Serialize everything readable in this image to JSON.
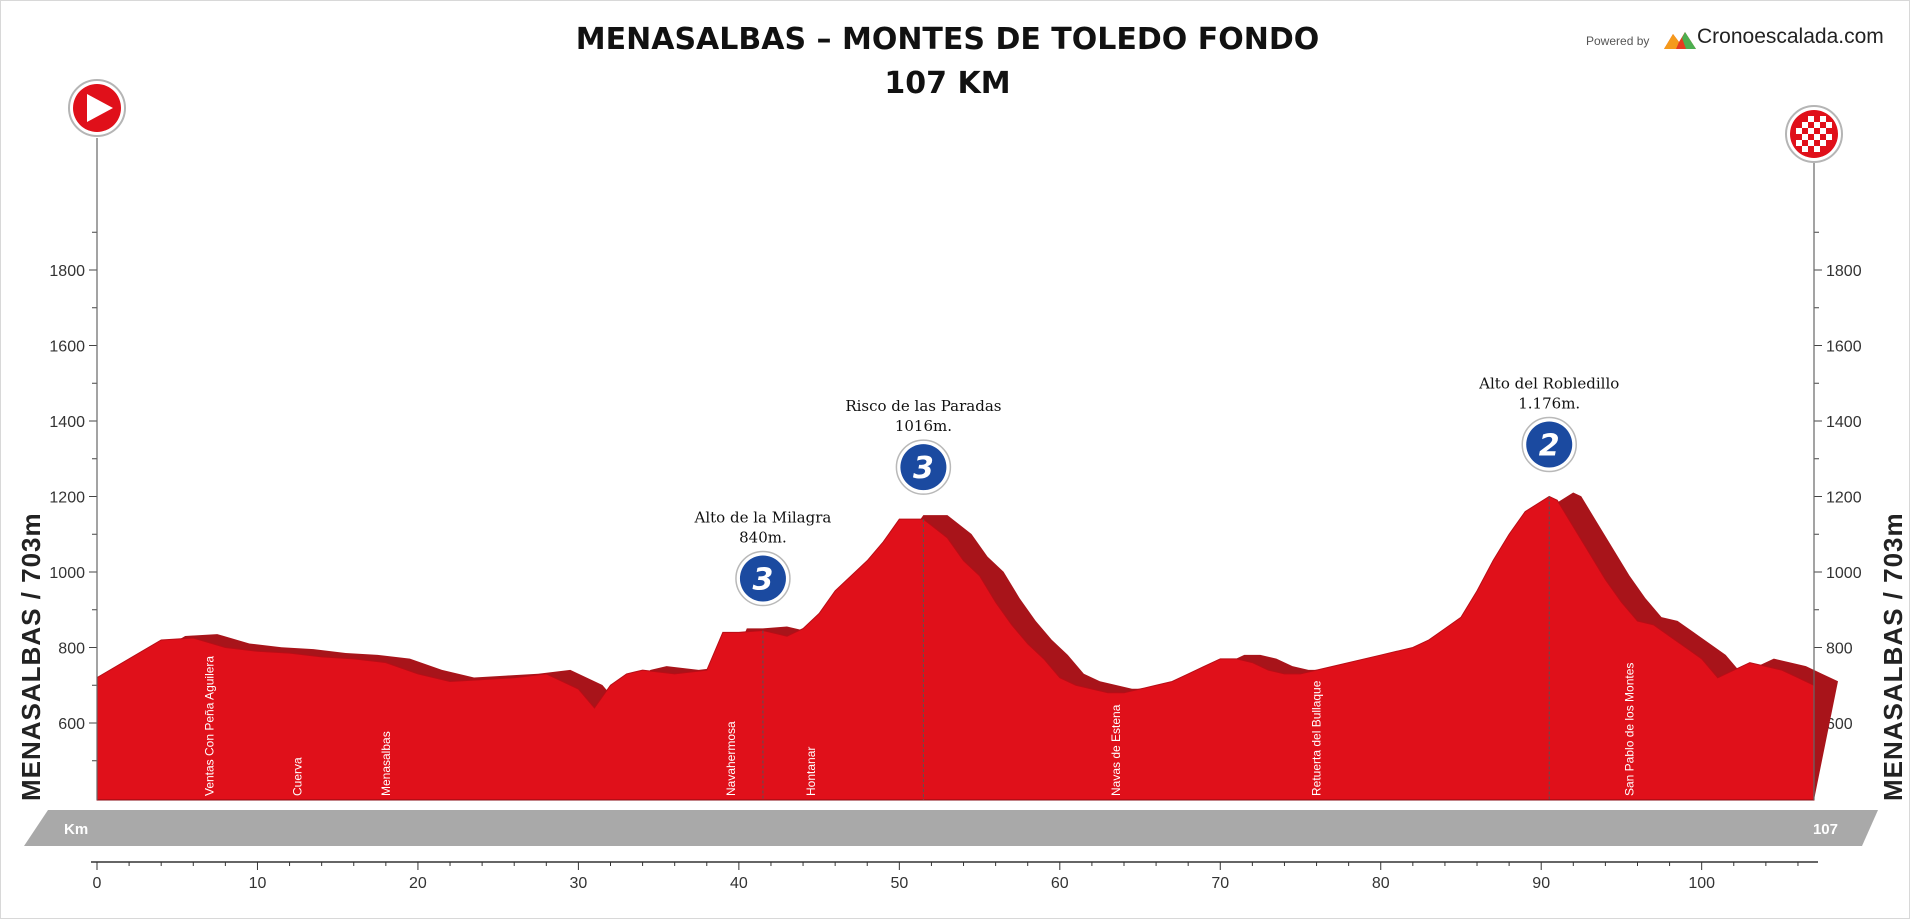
{
  "header": {
    "title": "MENASALBAS – MONTES DE TOLEDO FONDO",
    "subtitle": "107 KM",
    "powered_by": "Powered by",
    "brand": "Cronoescalada.com"
  },
  "side_label": "MENASALBAS / 703m",
  "km_bar": {
    "left": "Km",
    "right": "107"
  },
  "colors": {
    "profile": "#e0101a",
    "slope_shadow": "#a8141a",
    "km_bar": "#a9a9a9",
    "badge": "#1b4aa0"
  },
  "icons": {
    "start": "start-flag-icon",
    "finish": "checkered-finish-icon"
  },
  "chart_data": {
    "type": "area",
    "title": "MENASALBAS – MONTES DE TOLEDO FONDO",
    "subtitle": "107 KM",
    "xlabel": "",
    "ylabel": "",
    "xlim": [
      0,
      107
    ],
    "ylim": [
      400,
      2000
    ],
    "x_ticks": [
      0,
      10,
      20,
      30,
      40,
      50,
      60,
      70,
      80,
      90,
      100
    ],
    "y_ticks": [
      600,
      800,
      1000,
      1200,
      1400,
      1600,
      1800
    ],
    "series": [
      {
        "x": [
          0,
          2,
          4,
          6,
          8,
          10,
          12,
          14,
          16,
          18,
          20,
          22,
          24,
          26,
          28,
          30,
          31,
          32,
          33,
          34,
          36,
          38,
          39,
          40,
          41.5,
          43,
          44,
          45,
          46,
          47,
          48,
          49,
          50,
          51.5,
          53,
          54,
          55,
          56,
          57,
          58,
          59,
          60,
          61,
          62,
          63,
          64,
          65,
          66,
          67,
          68,
          69,
          70,
          71,
          72,
          73,
          74,
          75,
          76,
          77,
          78,
          79,
          80,
          81,
          82,
          83,
          84,
          85,
          86,
          87,
          88,
          89,
          90.5,
          91,
          92,
          93,
          94,
          95,
          96,
          97,
          98,
          99,
          100,
          101,
          102,
          103,
          104,
          105,
          106,
          107
        ],
        "elevation": [
          720,
          770,
          820,
          825,
          800,
          790,
          785,
          775,
          770,
          760,
          730,
          710,
          715,
          720,
          730,
          690,
          640,
          700,
          730,
          740,
          730,
          740,
          840,
          840,
          845,
          830,
          850,
          890,
          950,
          990,
          1030,
          1080,
          1140,
          1140,
          1090,
          1030,
          990,
          920,
          860,
          810,
          770,
          720,
          700,
          690,
          680,
          680,
          690,
          700,
          710,
          730,
          750,
          770,
          770,
          760,
          740,
          730,
          730,
          740,
          750,
          760,
          770,
          780,
          790,
          800,
          820,
          850,
          880,
          950,
          1030,
          1100,
          1160,
          1200,
          1190,
          1120,
          1050,
          980,
          920,
          870,
          860,
          830,
          800,
          770,
          720,
          740,
          760,
          750,
          740,
          720,
          700
        ]
      }
    ],
    "towns": [
      {
        "km": 7,
        "name": "Ventas Con Peña Aguilera"
      },
      {
        "km": 12.5,
        "name": "Cuerva"
      },
      {
        "km": 18,
        "name": "Menasalbas"
      },
      {
        "km": 39.5,
        "name": "Navahermosa"
      },
      {
        "km": 44.5,
        "name": "Hontanar"
      },
      {
        "km": 63.5,
        "name": "Navas de Estena"
      },
      {
        "km": 76,
        "name": "Retuerta del Bullaque"
      },
      {
        "km": 95.5,
        "name": "San Pablo de los Montes"
      }
    ],
    "climbs": [
      {
        "km": 41.5,
        "name": "Alto de la Milagra",
        "altitude_label": "840m.",
        "category": "3"
      },
      {
        "km": 51.5,
        "name": "Risco de las Paradas",
        "altitude_label": "1016m.",
        "category": "3"
      },
      {
        "km": 90.5,
        "name": "Alto del Robledillo",
        "altitude_label": "1.176m.",
        "category": "2"
      }
    ]
  }
}
